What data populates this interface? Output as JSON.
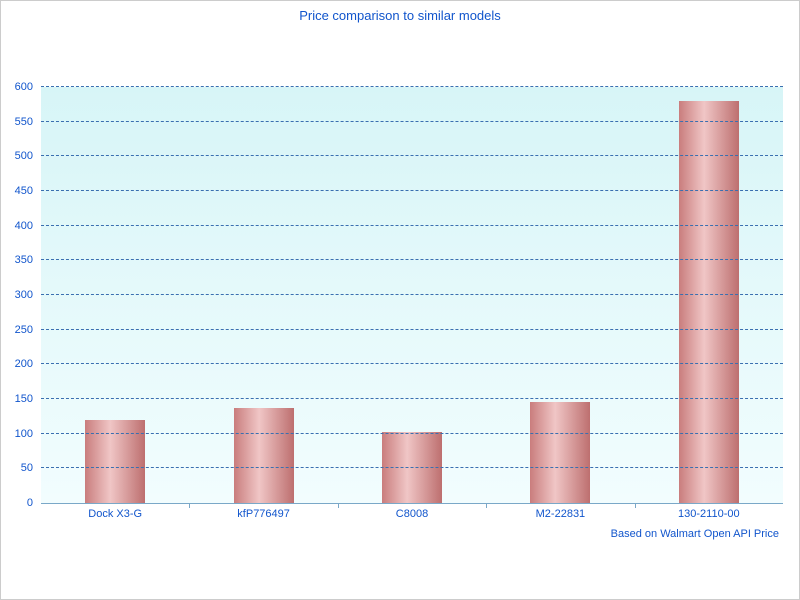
{
  "chart_data": {
    "type": "bar",
    "title": "Price comparison to similar models",
    "footnote": "Based on Walmart Open API Price",
    "categories": [
      "Dock X3-G",
      "kfP776497",
      "C8008",
      "M2-22831",
      "130-2110-00"
    ],
    "values": [
      120,
      137,
      102,
      146,
      580
    ],
    "ylim": [
      0,
      600
    ],
    "ytick_step": 50,
    "grid": true,
    "legend": "none",
    "colors": {
      "text": "#1155cc",
      "grid": "#3a6fb0",
      "axis": "#7aa8c8",
      "bar_edge": "#c97d7d",
      "bar_edge_right": "#bd6f6f",
      "bar_light": "#f0c6c6",
      "plot_background_top": "#d7f5f7",
      "plot_background_bottom": "#f2fdfe",
      "page_background": "#ffffff"
    }
  }
}
